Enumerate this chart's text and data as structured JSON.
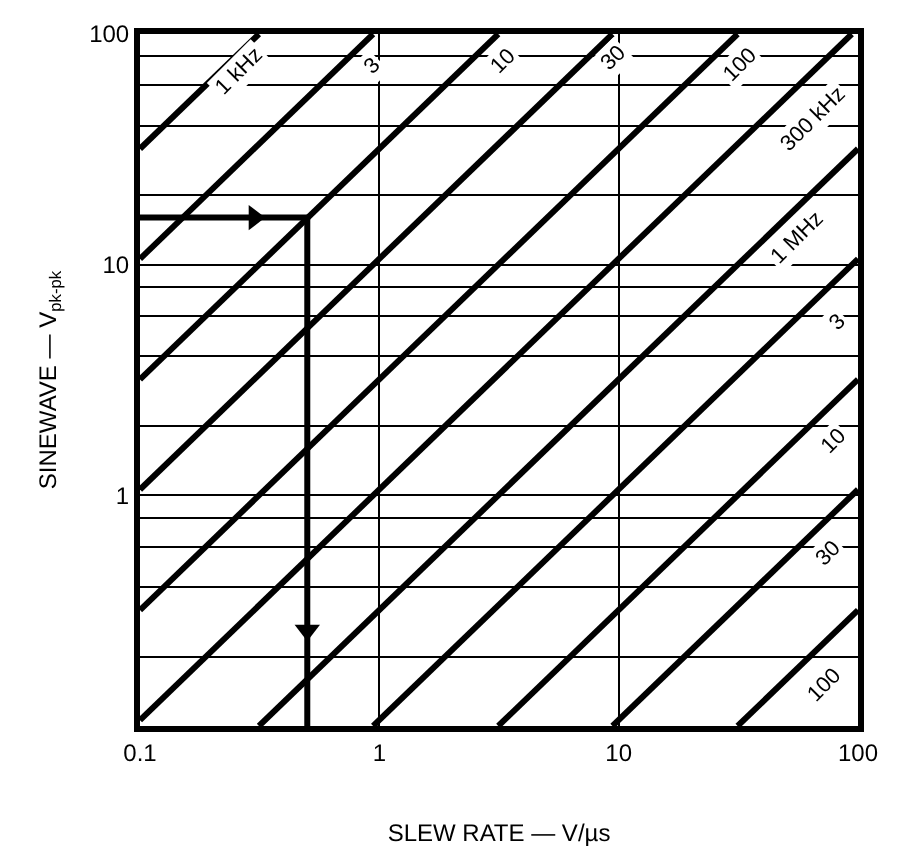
{
  "chart_data": {
    "type": "line",
    "xlabel": "SLEW RATE — V/µs",
    "ylabel": "SINEWAVE — V$_{pk-pk}$",
    "log": "xy",
    "grid": true,
    "marker": "none",
    "line_style": "solid",
    "xlim": [
      0.1,
      100
    ],
    "ylim": [
      0.1,
      100
    ],
    "xticks": [
      0.1,
      1,
      10,
      100
    ],
    "yticks": [
      {
        "value": 0.2,
        "label": null
      },
      {
        "value": 0.4,
        "label": null
      },
      {
        "value": 0.6,
        "label": null
      },
      {
        "value": 0.8,
        "label": null
      },
      1,
      {
        "value": 2,
        "label": null
      },
      {
        "value": 4,
        "label": null
      },
      {
        "value": 6,
        "label": null
      },
      {
        "value": 8,
        "label": null
      },
      10,
      {
        "value": 20,
        "label": null
      },
      {
        "value": 40,
        "label": null
      },
      {
        "value": 60,
        "label": null
      },
      {
        "value": 80,
        "label": null
      },
      100
    ],
    "series": [
      {
        "color": "#000000",
        "x": [
          0.1,
          0.314
        ],
        "values": [
          31.8,
          100
        ]
      },
      {
        "color": "#000000",
        "x": [
          0.1,
          0.942
        ],
        "values": [
          10.6,
          100
        ]
      },
      {
        "color": "#000000",
        "x": [
          0.1,
          3.14
        ],
        "values": [
          3.18,
          100
        ]
      },
      {
        "color": "#000000",
        "x": [
          0.1,
          9.42
        ],
        "values": [
          1.06,
          100
        ]
      },
      {
        "color": "#000000",
        "x": [
          0.1,
          31.4
        ],
        "values": [
          0.318,
          100
        ]
      },
      {
        "color": "#000000",
        "x": [
          0.1,
          94.2
        ],
        "values": [
          0.106,
          100
        ]
      },
      {
        "color": "#000000",
        "x": [
          0.314,
          100
        ],
        "values": [
          0.1,
          31.8
        ]
      },
      {
        "color": "#000000",
        "x": [
          0.942,
          100
        ],
        "values": [
          0.1,
          10.6
        ]
      },
      {
        "color": "#000000",
        "x": [
          3.14,
          100
        ],
        "values": [
          0.1,
          3.18
        ]
      },
      {
        "color": "#000000",
        "x": [
          9.42,
          100
        ],
        "values": [
          0.1,
          1.06
        ]
      },
      {
        "color": "#000000",
        "x": [
          31.4,
          100
        ],
        "values": [
          0.1,
          0.318
        ]
      },
      {
        "color": "#000000",
        "x": [
          0.1,
          0.5,
          0.5
        ],
        "values": [
          16,
          16,
          0.1
        ]
      },
      {
        "type": "scatter",
        "marker": "triangle",
        "color": "#000000",
        "x": [
          0.3,
          0.5
        ],
        "values": [
          16,
          0.26
        ]
      }
    ],
    "annotations": [
      {
        "text": "1 kHz",
        "x": 0.26,
        "y": 68
      },
      {
        "text": "3",
        "x": 0.94,
        "y": 73
      },
      {
        "text": "10",
        "x": 3.3,
        "y": 75
      },
      {
        "text": "30",
        "x": 9.6,
        "y": 78
      },
      {
        "text": "100",
        "x": 32,
        "y": 73
      },
      {
        "text": "300 kHz",
        "x": 65,
        "y": 42
      },
      {
        "text": "1 MHz",
        "x": 56,
        "y": 13
      },
      {
        "text": "3",
        "x": 83,
        "y": 5.6
      },
      {
        "text": "10",
        "x": 79,
        "y": 1.7
      },
      {
        "text": "30",
        "x": 75,
        "y": 0.56
      },
      {
        "text": "100",
        "x": 72,
        "y": 0.15
      }
    ]
  }
}
